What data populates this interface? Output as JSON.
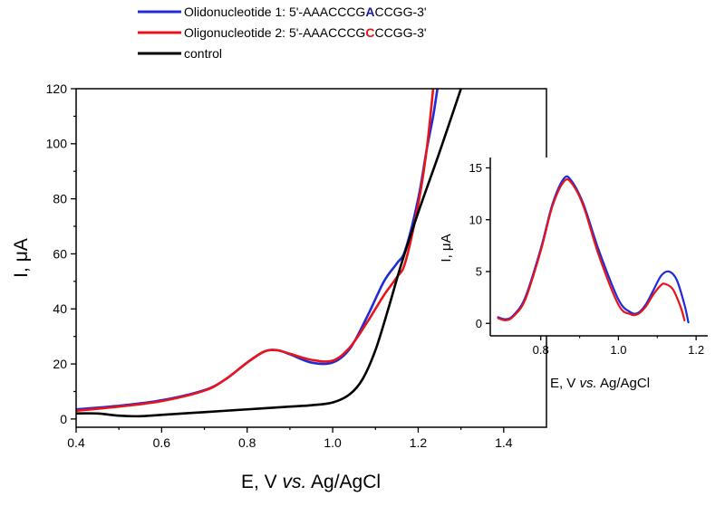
{
  "legend": {
    "entries": [
      {
        "name": "Olidonucleotide 1: 5'-AAACCCG",
        "highlight": "A",
        "tail": "CCGG-3'",
        "color": "#1f2bd6",
        "highlight_color": "#1a1aa0"
      },
      {
        "name": "Oligonucleotide 2: 5'-AAACCCG",
        "highlight": "C",
        "tail": "CCGG-3'",
        "color": "#e8141c",
        "highlight_color": "#e8141c"
      },
      {
        "name": "control",
        "highlight": "",
        "tail": "",
        "color": "#000000",
        "highlight_color": "#000000"
      }
    ]
  },
  "chart_data": [
    {
      "type": "line",
      "xlabel_pre": "E, V ",
      "xlabel_italic": "vs.",
      "xlabel_post": " Ag/AgCl",
      "ylabel": "I, μA",
      "xlim": [
        0.4,
        1.5
      ],
      "ylim": [
        -3,
        120
      ],
      "xticks": [
        0.4,
        0.6,
        0.8,
        1.0,
        1.2,
        1.4
      ],
      "xtick_labels": [
        "0.4",
        "0.6",
        "0.8",
        "1.0",
        "1.2",
        "1.4"
      ],
      "yticks": [
        0,
        20,
        40,
        60,
        80,
        100,
        120
      ],
      "ytick_labels": [
        "0",
        "20",
        "40",
        "60",
        "80",
        "100",
        "120"
      ],
      "grid": false,
      "series": [
        {
          "color": "#1f2bd6",
          "x": [
            0.4,
            0.5,
            0.6,
            0.7,
            0.75,
            0.8,
            0.84,
            0.87,
            0.9,
            0.95,
            1.0,
            1.04,
            1.08,
            1.12,
            1.15,
            1.17,
            1.2,
            1.22,
            1.235,
            1.245
          ],
          "y": [
            3.5,
            4.8,
            6.8,
            10.5,
            14.5,
            20.5,
            24.5,
            25.0,
            23.5,
            20.5,
            20.5,
            25.5,
            37.0,
            50.0,
            56.5,
            61.5,
            80.0,
            98.0,
            110.0,
            120.0
          ]
        },
        {
          "color": "#e8141c",
          "x": [
            0.4,
            0.5,
            0.6,
            0.7,
            0.75,
            0.8,
            0.84,
            0.87,
            0.9,
            0.95,
            1.0,
            1.04,
            1.08,
            1.12,
            1.15,
            1.17,
            1.2,
            1.22,
            1.235
          ],
          "y": [
            3.0,
            4.5,
            6.5,
            10.3,
            14.5,
            20.5,
            24.5,
            25.0,
            23.7,
            21.5,
            21.2,
            26.0,
            35.0,
            45.0,
            51.5,
            57.0,
            78.0,
            98.0,
            120.0
          ]
        },
        {
          "color": "#000000",
          "x": [
            0.4,
            0.45,
            0.5,
            0.55,
            0.6,
            0.7,
            0.8,
            0.9,
            0.95,
            1.0,
            1.04,
            1.07,
            1.1,
            1.13,
            1.16,
            1.2,
            1.25,
            1.3
          ],
          "y": [
            2.0,
            2.0,
            1.2,
            1.0,
            1.5,
            2.5,
            3.5,
            4.5,
            5.0,
            6.0,
            9.0,
            14.5,
            25.0,
            40.0,
            56.0,
            75.0,
            97.0,
            120.0
          ]
        }
      ]
    },
    {
      "type": "line",
      "xlabel_pre": "E, V ",
      "xlabel_italic": "vs.",
      "xlabel_post": " Ag/AgCl",
      "ylabel": "I, μA",
      "xlim": [
        0.67,
        1.23
      ],
      "ylim": [
        -1.2,
        16
      ],
      "xticks": [
        0.8,
        1.0,
        1.2
      ],
      "xtick_labels": [
        "0.8",
        "1.0",
        "1.2"
      ],
      "yticks": [
        0,
        5,
        10,
        15
      ],
      "ytick_labels": [
        "0",
        "5",
        "10",
        "15"
      ],
      "grid": false,
      "series": [
        {
          "color": "#1f2bd6",
          "x": [
            0.69,
            0.71,
            0.73,
            0.76,
            0.8,
            0.83,
            0.86,
            0.88,
            0.91,
            0.95,
            1.0,
            1.03,
            1.05,
            1.07,
            1.09,
            1.11,
            1.13,
            1.15,
            1.17,
            1.18
          ],
          "y": [
            0.6,
            0.4,
            0.8,
            2.5,
            7.2,
            11.5,
            14.0,
            13.7,
            11.5,
            7.0,
            2.3,
            1.1,
            1.0,
            1.8,
            3.2,
            4.6,
            5.0,
            4.2,
            1.8,
            0.1
          ]
        },
        {
          "color": "#e8141c",
          "x": [
            0.69,
            0.71,
            0.73,
            0.76,
            0.8,
            0.83,
            0.86,
            0.88,
            0.91,
            0.95,
            1.0,
            1.03,
            1.05,
            1.07,
            1.09,
            1.11,
            1.12,
            1.14,
            1.16,
            1.17
          ],
          "y": [
            0.5,
            0.3,
            0.7,
            2.3,
            7.0,
            11.3,
            13.7,
            13.5,
            11.3,
            6.5,
            1.8,
            0.9,
            0.9,
            1.6,
            2.8,
            3.7,
            3.8,
            3.3,
            1.6,
            0.3
          ]
        }
      ]
    }
  ]
}
